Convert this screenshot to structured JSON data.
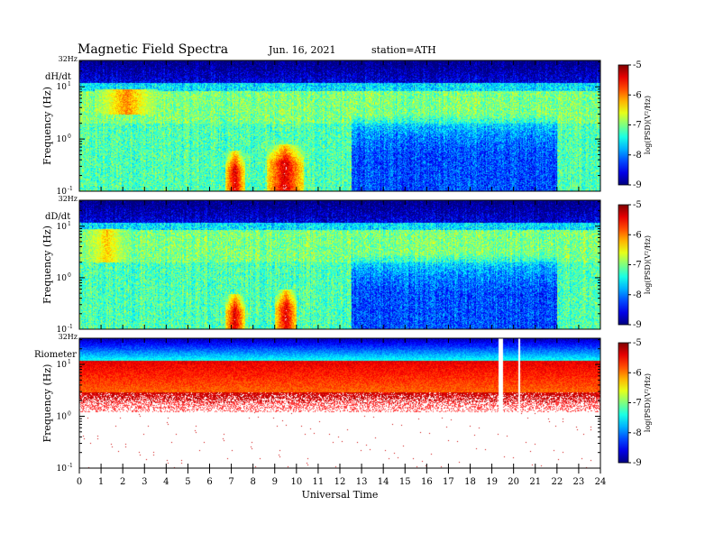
{
  "header": {
    "title": "Magnetic  Field  Spectra",
    "date": "Jun. 16, 2021",
    "station": "station=ATH"
  },
  "chart_data": {
    "type": "heatmap",
    "xlabel": "Universal Time",
    "x_ticks": [
      "0",
      "1",
      "2",
      "3",
      "4",
      "5",
      "6",
      "7",
      "8",
      "9",
      "10",
      "11",
      "12",
      "13",
      "14",
      "15",
      "16",
      "17",
      "18",
      "19",
      "20",
      "21",
      "22",
      "23",
      "24"
    ],
    "xlim": [
      0,
      24
    ],
    "ylabel": "Frequency  (Hz)",
    "y_scale": "log",
    "ylim": [
      0.1,
      32
    ],
    "y_top_label": "32Hz",
    "y_tick_labels": [
      "10",
      "10",
      "10"
    ],
    "y_tick_exponents": [
      "1",
      "0",
      "-1"
    ],
    "panels": [
      {
        "name": "dH/dt",
        "colorbar": {
          "ticks": [
            "-5",
            "-6",
            "-7",
            "-8",
            "-9"
          ],
          "label": "log(PSD)(V²/Hz)",
          "range": [
            -9,
            -5
          ]
        },
        "events": [
          {
            "t_start": 6.7,
            "t_end": 7.6,
            "f_max": 0.6,
            "level": -5.3
          },
          {
            "t_start": 8.6,
            "t_end": 10.3,
            "f_max": 0.8,
            "level": -5.3
          },
          {
            "t_start": 0.7,
            "t_end": 3.6,
            "f_min": 3,
            "f_max": 9,
            "level": -6.0
          }
        ]
      },
      {
        "name": "dD/dt",
        "colorbar": {
          "ticks": [
            "-5",
            "-6",
            "-7",
            "-8",
            "-9"
          ],
          "label": "log(PSD)(V²/Hz)",
          "range": [
            -9,
            -5
          ]
        },
        "events": [
          {
            "t_start": 6.7,
            "t_end": 7.6,
            "f_max": 0.5,
            "level": -5.3
          },
          {
            "t_start": 9.0,
            "t_end": 10.0,
            "f_max": 0.6,
            "level": -5.3
          },
          {
            "t_start": 0.0,
            "t_end": 2.5,
            "f_min": 2,
            "f_max": 9,
            "level": -6.3
          }
        ]
      },
      {
        "name": "Riometer",
        "colorbar": {
          "ticks": [
            "-5",
            "-6",
            "-7",
            "-8",
            "-9"
          ],
          "label": "log(PSD)(V²/Hz)",
          "range": [
            -9,
            -5
          ]
        },
        "events": [
          {
            "t_start": 19.3,
            "t_end": 19.5,
            "f_min": 0.3,
            "f_max": 32,
            "level": -5.0
          },
          {
            "t_start": 20.2,
            "t_end": 20.3,
            "f_min": 1,
            "f_max": 32,
            "level": -5.0
          }
        ]
      }
    ]
  }
}
